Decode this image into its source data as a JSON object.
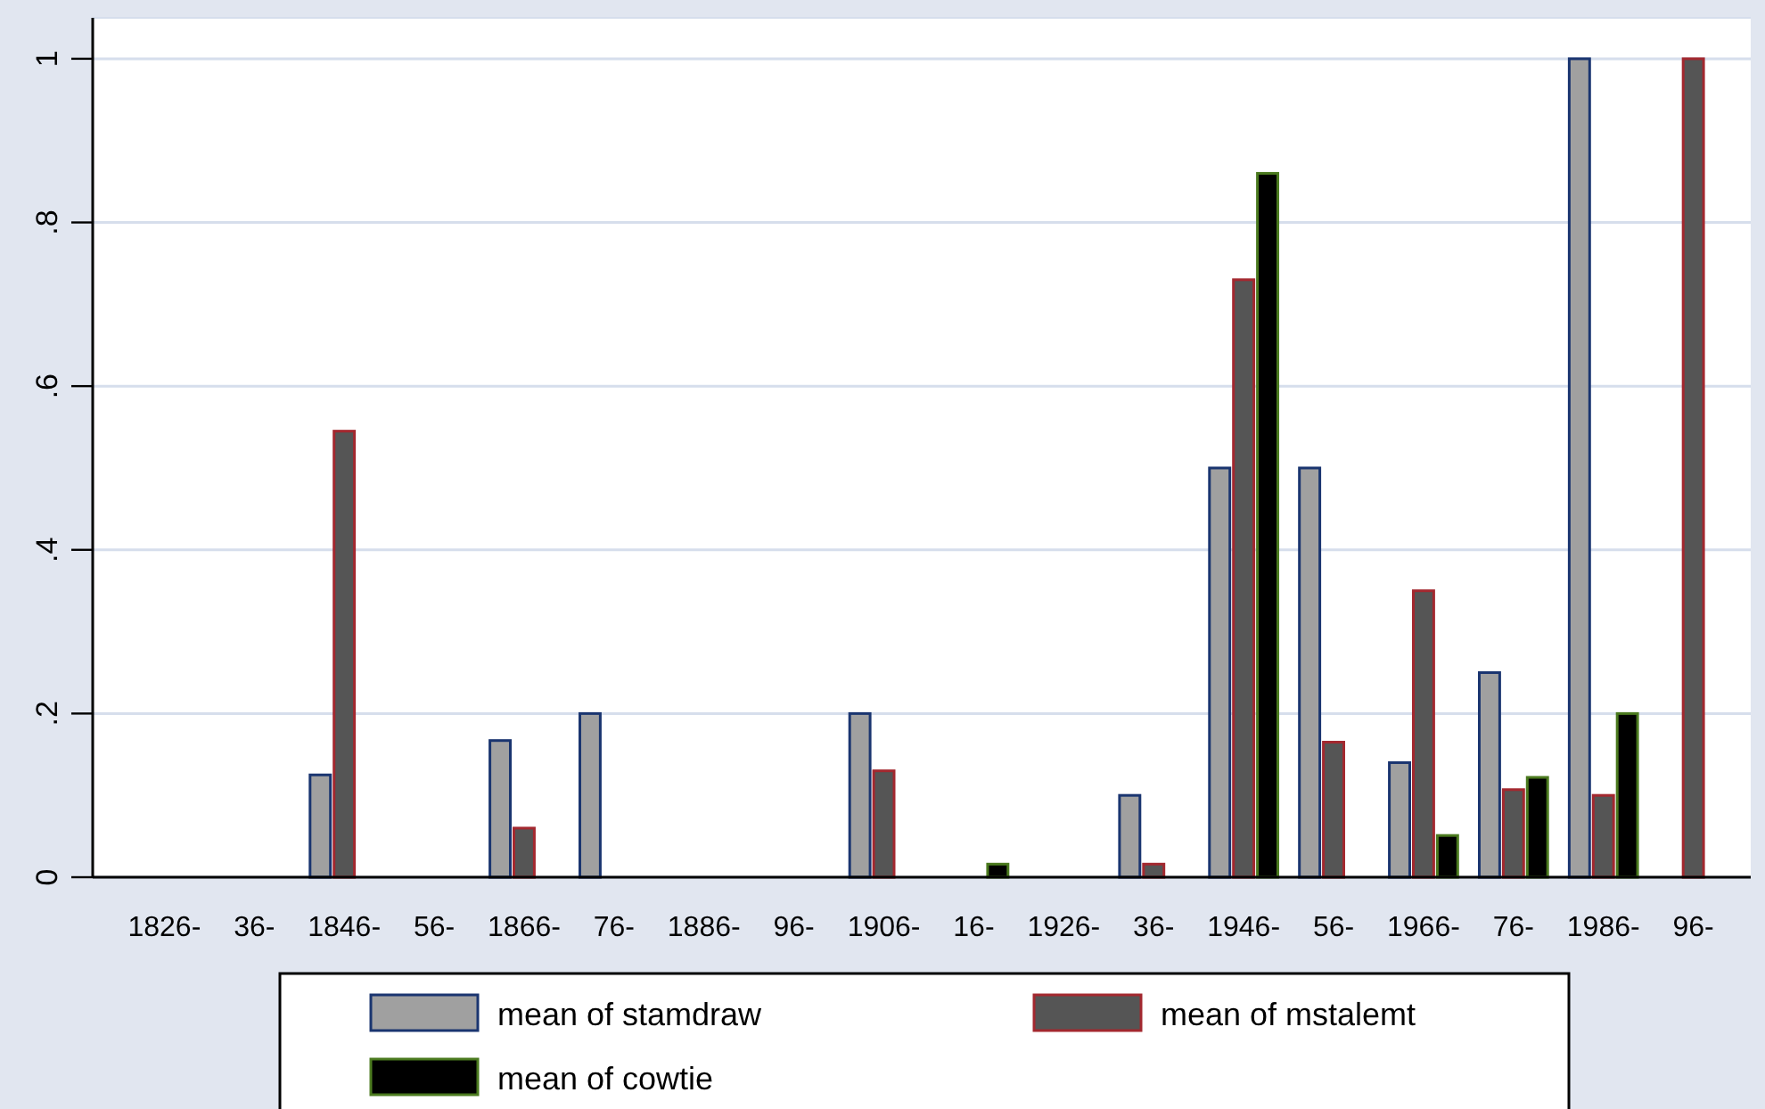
{
  "chart_data": {
    "type": "bar",
    "categories": [
      "1826-",
      "36-",
      "1846-",
      "56-",
      "1866-",
      "76-",
      "1886-",
      "96-",
      "1906-",
      "16-",
      "1926-",
      "36-",
      "1946-",
      "56-",
      "1966-",
      "76-",
      "1986-",
      "96-"
    ],
    "series": [
      {
        "name": "mean of stamdraw",
        "color": "#a0a0a0",
        "values": [
          null,
          null,
          0.125,
          null,
          0.167,
          0.2,
          null,
          null,
          0.2,
          null,
          null,
          0.1,
          0.5,
          0.5,
          0.14,
          0.25,
          1,
          null
        ]
      },
      {
        "name": "mean of mstalemt",
        "color": "#555555",
        "values": [
          null,
          null,
          0.545,
          null,
          0.06,
          null,
          null,
          null,
          0.13,
          null,
          null,
          0.016,
          0.73,
          0.165,
          0.35,
          0.107,
          0.1,
          1
        ]
      },
      {
        "name": "mean of cowtie",
        "color": "#000000",
        "values": [
          null,
          null,
          null,
          null,
          null,
          null,
          null,
          null,
          null,
          0.016,
          null,
          null,
          0.86,
          null,
          0.051,
          0.122,
          0.2,
          null
        ]
      }
    ],
    "ylim": [
      0,
      1.05
    ],
    "yticks": [
      0,
      {
        "value": 0.2,
        "label": ".2"
      },
      {
        "value": 0.4,
        "label": ".4"
      },
      {
        "value": 0.6,
        "label": ".6"
      },
      {
        "value": 0.8,
        "label": ".8"
      },
      1
    ],
    "grid": "y",
    "legend": "bottom"
  }
}
